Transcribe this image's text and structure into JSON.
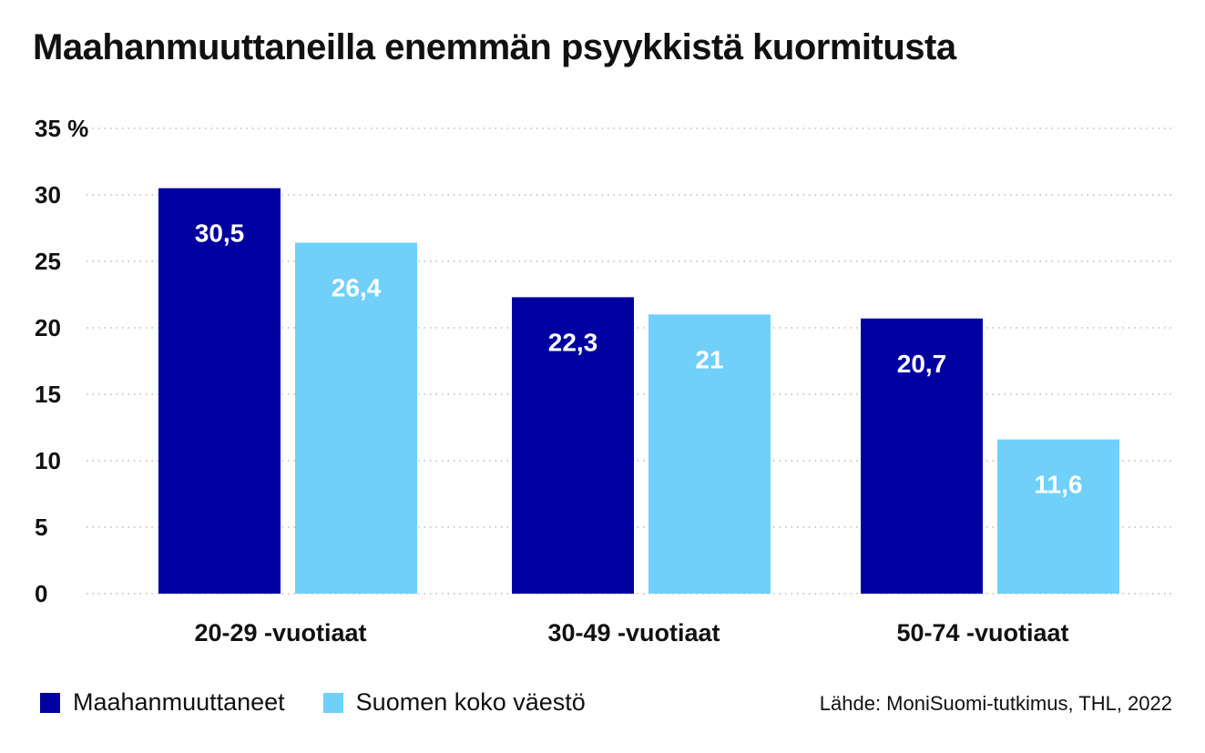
{
  "title": "Maahanmuuttaneilla enemmän psyykkistä kuormitusta",
  "source": "Lähde: MoniSuomi-tutkimus, THL, 2022",
  "colors": {
    "series1": "#0000a0",
    "series2": "#70d0fa",
    "grid": "#bbbbbb"
  },
  "legend": [
    {
      "label": "Maahanmuuttaneet",
      "color": "#0000a0"
    },
    {
      "label": "Suomen koko väestö",
      "color": "#70d0fa"
    }
  ],
  "chart_data": {
    "type": "bar",
    "title": "Maahanmuuttaneilla enemmän psyykkistä kuormitusta",
    "categories": [
      "20-29 -vuotiaat",
      "30-49 -vuotiaat",
      "50-74 -vuotiaat"
    ],
    "series": [
      {
        "name": "Maahanmuuttaneet",
        "values": [
          30.5,
          22.3,
          20.7
        ],
        "labels": [
          "30,5",
          "22,3",
          "20,7"
        ]
      },
      {
        "name": "Suomen koko väestö",
        "values": [
          26.4,
          21,
          11.6
        ],
        "labels": [
          "26,4",
          "21",
          "11,6"
        ]
      }
    ],
    "ylim": [
      0,
      35
    ],
    "yticks": [
      0,
      5,
      10,
      15,
      20,
      25,
      30,
      35
    ],
    "ytick_labels": [
      "0",
      "5",
      "10",
      "15",
      "20",
      "25",
      "30",
      "35 %"
    ],
    "grid": true,
    "legend_position": "bottom-left"
  }
}
